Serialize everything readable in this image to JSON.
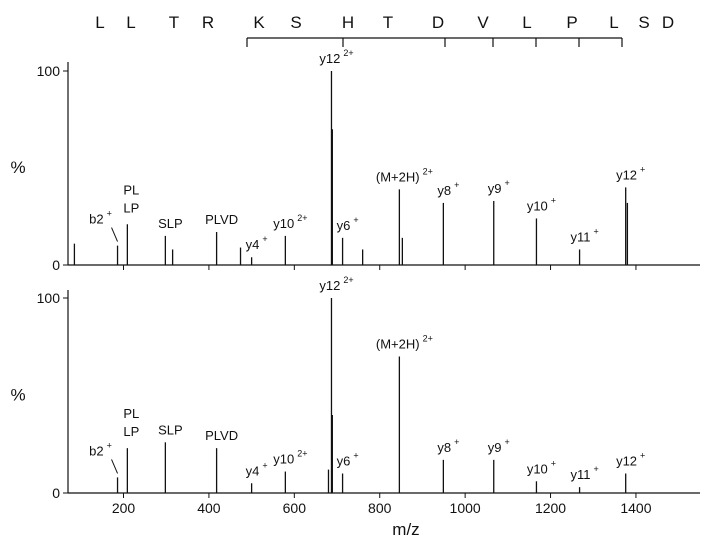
{
  "chart_data": [
    {
      "type": "bar",
      "y_label": "%",
      "sequence": [
        "L",
        "L",
        "T",
        "R",
        "K",
        "S",
        "H",
        "T",
        "D",
        "V",
        "L",
        "P",
        "L",
        "S",
        "D"
      ],
      "xlim": [
        70,
        1550
      ],
      "xticks": [
        200,
        400,
        600,
        800,
        1000,
        1200,
        1400
      ],
      "ylim": [
        0,
        100
      ],
      "yticks": [
        0,
        100
      ],
      "color": "#111111",
      "x": [
        85,
        186,
        209,
        298,
        315,
        418,
        474,
        500,
        579,
        687,
        689,
        713,
        760,
        846,
        853,
        949,
        1067,
        1167,
        1268,
        1376,
        1380
      ],
      "values": [
        11,
        10,
        21,
        15,
        8,
        17,
        9,
        4,
        15,
        100,
        70,
        14,
        8,
        39,
        14,
        32,
        33,
        24,
        8,
        40,
        32
      ],
      "annotations": [
        {
          "lines": [
            "b2"
          ],
          "charge": "+",
          "x": 186
        },
        {
          "lines": [
            "PL",
            "LP"
          ],
          "x": 209
        },
        {
          "lines": [
            "SLP"
          ],
          "x": 298
        },
        {
          "lines": [
            "PLVD"
          ],
          "x": 418
        },
        {
          "lines": [
            "y4"
          ],
          "charge": "+",
          "x": 500
        },
        {
          "lines": [
            "y10"
          ],
          "charge": "2+",
          "x": 579
        },
        {
          "lines": [
            "y12"
          ],
          "charge": "2+",
          "x": 687
        },
        {
          "lines": [
            "y6"
          ],
          "charge": "+",
          "x": 713
        },
        {
          "lines": [
            "(M+2H)"
          ],
          "charge": "2+",
          "x": 846
        },
        {
          "lines": [
            "y8"
          ],
          "charge": "+",
          "x": 949
        },
        {
          "lines": [
            "y9"
          ],
          "charge": "+",
          "x": 1067
        },
        {
          "lines": [
            "y10"
          ],
          "charge": "+",
          "x": 1167
        },
        {
          "lines": [
            "y11"
          ],
          "charge": "+",
          "x": 1268
        },
        {
          "lines": [
            "y12"
          ],
          "charge": "+",
          "x": 1376
        }
      ]
    },
    {
      "type": "bar",
      "y_label": "%",
      "x_label": "m/z",
      "xlim": [
        70,
        1550
      ],
      "xticks": [
        200,
        400,
        600,
        800,
        1000,
        1200,
        1400
      ],
      "ylim": [
        0,
        100
      ],
      "yticks": [
        0,
        100
      ],
      "color": "#111111",
      "x": [
        186,
        209,
        298,
        418,
        500,
        579,
        680,
        687,
        689,
        713,
        846,
        949,
        1067,
        1167,
        1268,
        1376
      ],
      "values": [
        8,
        23,
        26,
        23,
        5,
        11,
        12,
        100,
        40,
        10,
        70,
        17,
        17,
        6,
        3,
        10
      ],
      "annotations": [
        {
          "lines": [
            "b2"
          ],
          "charge": "+",
          "x": 186
        },
        {
          "lines": [
            "PL",
            "LP"
          ],
          "x": 209
        },
        {
          "lines": [
            "SLP"
          ],
          "x": 298
        },
        {
          "lines": [
            "PLVD"
          ],
          "x": 418
        },
        {
          "lines": [
            "y4"
          ],
          "charge": "+",
          "x": 500
        },
        {
          "lines": [
            "y10"
          ],
          "charge": "2+",
          "x": 579
        },
        {
          "lines": [
            "y12"
          ],
          "charge": "2+",
          "x": 687
        },
        {
          "lines": [
            "y6"
          ],
          "charge": "+",
          "x": 713
        },
        {
          "lines": [
            "(M+2H)"
          ],
          "charge": "2+",
          "x": 846
        },
        {
          "lines": [
            "y8"
          ],
          "charge": "+",
          "x": 949
        },
        {
          "lines": [
            "y9"
          ],
          "charge": "+",
          "x": 1067
        },
        {
          "lines": [
            "y10"
          ],
          "charge": "+",
          "x": 1167
        },
        {
          "lines": [
            "y11"
          ],
          "charge": "+",
          "x": 1268
        },
        {
          "lines": [
            "y12"
          ],
          "charge": "+",
          "x": 1376
        }
      ]
    }
  ]
}
